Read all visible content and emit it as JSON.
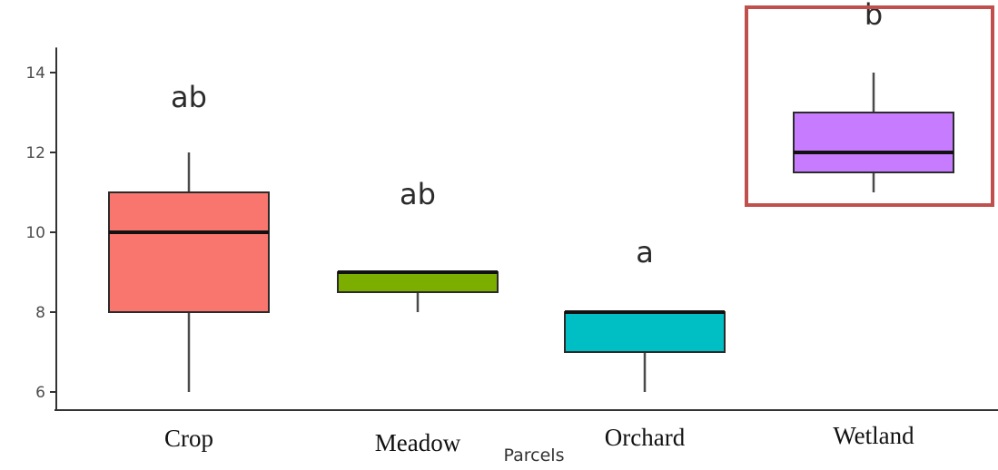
{
  "chart_data": {
    "type": "box",
    "title": "",
    "xlabel": "Parcels",
    "ylabel": "",
    "ylim": [
      5.8,
      14.4
    ],
    "yticks": [
      6,
      8,
      10,
      12,
      14
    ],
    "grid": false,
    "legend": "none",
    "categories": [
      "Crop",
      "Meadow",
      "Orchard",
      "Wetland"
    ],
    "boxes": [
      {
        "category": "Crop",
        "min": 6,
        "q1": 8,
        "median": 10,
        "q3": 11,
        "max": 12,
        "letter": "ab",
        "color": "#f8766d"
      },
      {
        "category": "Meadow",
        "min": 8,
        "q1": 8.5,
        "median": 9,
        "q3": 9,
        "max": 9,
        "letter": "ab",
        "color": "#7cae00"
      },
      {
        "category": "Orchard",
        "min": 6,
        "q1": 7,
        "median": 8,
        "q3": 8,
        "max": 8,
        "letter": "a",
        "color": "#00bfc4"
      },
      {
        "category": "Wetland",
        "min": 11,
        "q1": 11.5,
        "median": 12,
        "q3": 13,
        "max": 14,
        "letter": "b",
        "color": "#c77cff"
      }
    ],
    "highlight": {
      "category": "Wetland",
      "color": "#c0504d"
    }
  }
}
